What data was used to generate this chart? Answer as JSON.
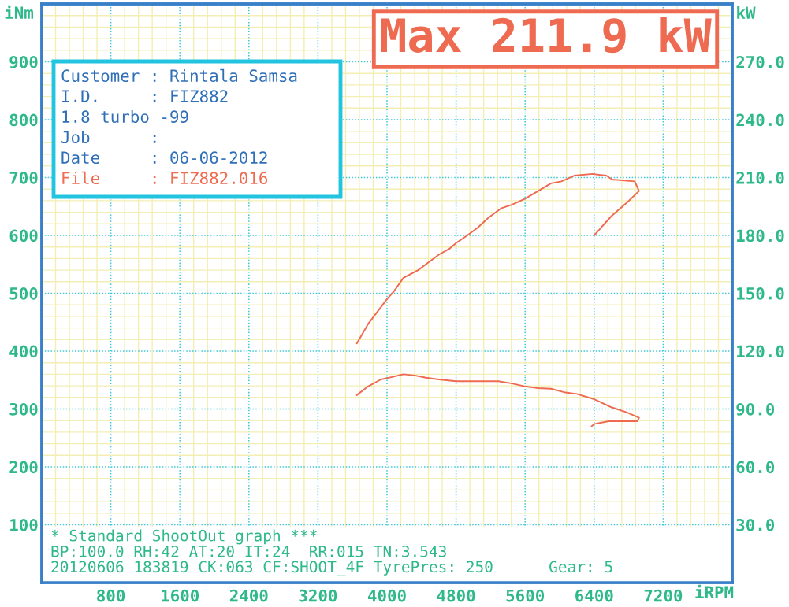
{
  "chart_data": {
    "type": "line",
    "title": "Max 211.9 kW",
    "xlabel": "iRPM",
    "ylabel": "iNm",
    "y2label": "kW",
    "xlim": [
      0,
      8000
    ],
    "xticks": [
      {
        "value": 160,
        "label": null
      },
      {
        "value": 320,
        "label": null
      },
      {
        "value": 480,
        "label": null
      },
      {
        "value": 640,
        "label": null
      },
      800,
      {
        "value": 960,
        "label": null
      },
      {
        "value": 1120,
        "label": null
      },
      {
        "value": 1280,
        "label": null
      },
      {
        "value": 1440,
        "label": null
      },
      1600,
      {
        "value": 1760,
        "label": null
      },
      {
        "value": 1920,
        "label": null
      },
      {
        "value": 2080,
        "label": null
      },
      {
        "value": 2240,
        "label": null
      },
      2400,
      {
        "value": 2560,
        "label": null
      },
      {
        "value": 2720,
        "label": null
      },
      {
        "value": 2880,
        "label": null
      },
      {
        "value": 3040,
        "label": null
      },
      3200,
      {
        "value": 3360,
        "label": null
      },
      {
        "value": 3520,
        "label": null
      },
      {
        "value": 3680,
        "label": null
      },
      {
        "value": 3840,
        "label": null
      },
      4000,
      {
        "value": 4160,
        "label": null
      },
      {
        "value": 4320,
        "label": null
      },
      {
        "value": 4480,
        "label": null
      },
      {
        "value": 4640,
        "label": null
      },
      4800,
      {
        "value": 4960,
        "label": null
      },
      {
        "value": 5120,
        "label": null
      },
      {
        "value": 5280,
        "label": null
      },
      {
        "value": 5440,
        "label": null
      },
      5600,
      {
        "value": 5760,
        "label": null
      },
      {
        "value": 5920,
        "label": null
      },
      {
        "value": 6080,
        "label": null
      },
      {
        "value": 6240,
        "label": null
      },
      6400,
      {
        "value": 6560,
        "label": null
      },
      {
        "value": 6720,
        "label": null
      },
      {
        "value": 6880,
        "label": null
      },
      {
        "value": 7040,
        "label": null
      },
      7200,
      {
        "value": 7360,
        "label": null
      },
      {
        "value": 7520,
        "label": null
      },
      {
        "value": 7680,
        "label": null
      },
      {
        "value": 7840,
        "label": null
      }
    ],
    "ylim": [
      0,
      1000
    ],
    "yticks": [
      100,
      {
        "value": 120,
        "label": null
      },
      {
        "value": 140,
        "label": null
      },
      {
        "value": 160,
        "label": null
      },
      {
        "value": 180,
        "label": null
      },
      200,
      {
        "value": 220,
        "label": null
      },
      {
        "value": 240,
        "label": null
      },
      {
        "value": 260,
        "label": null
      },
      {
        "value": 280,
        "label": null
      },
      300,
      {
        "value": 320,
        "label": null
      },
      {
        "value": 340,
        "label": null
      },
      {
        "value": 360,
        "label": null
      },
      {
        "value": 380,
        "label": null
      },
      400,
      {
        "value": 420,
        "label": null
      },
      {
        "value": 440,
        "label": null
      },
      {
        "value": 460,
        "label": null
      },
      {
        "value": 480,
        "label": null
      },
      500,
      {
        "value": 520,
        "label": null
      },
      {
        "value": 540,
        "label": null
      },
      {
        "value": 560,
        "label": null
      },
      {
        "value": 580,
        "label": null
      },
      600,
      {
        "value": 620,
        "label": null
      },
      {
        "value": 640,
        "label": null
      },
      {
        "value": 660,
        "label": null
      },
      {
        "value": 680,
        "label": null
      },
      700,
      {
        "value": 720,
        "label": null
      },
      {
        "value": 740,
        "label": null
      },
      {
        "value": 760,
        "label": null
      },
      {
        "value": 780,
        "label": null
      },
      800,
      {
        "value": 820,
        "label": null
      },
      {
        "value": 840,
        "label": null
      },
      {
        "value": 860,
        "label": null
      },
      {
        "value": 880,
        "label": null
      },
      900,
      {
        "value": 920,
        "label": null
      },
      {
        "value": 940,
        "label": null
      },
      {
        "value": 960,
        "label": null
      },
      {
        "value": 980,
        "label": null
      }
    ],
    "y2lim": [
      0,
      300
    ],
    "y2ticks": [
      {
        "value": 30,
        "label": "30.0"
      },
      {
        "value": 60,
        "label": "60.0"
      },
      {
        "value": 90,
        "label": "90.0"
      },
      {
        "value": 120,
        "label": "120.0"
      },
      {
        "value": 150,
        "label": "150.0"
      },
      {
        "value": 180,
        "label": "180.0"
      },
      {
        "value": 210,
        "label": "210.0"
      },
      {
        "value": 240,
        "label": "240.0"
      },
      {
        "value": 270,
        "label": "270.0"
      }
    ],
    "grid": true,
    "line_style": "solid",
    "series": [
      {
        "color": "#ee6a50",
        "x": [
          3650,
          3780,
          3930,
          4080,
          4190,
          4320,
          4450,
          4600,
          4800,
          5080,
          5290,
          5450,
          5600,
          5750,
          5900,
          6050,
          6200,
          6400,
          6600,
          6780,
          6920,
          6900,
          6570,
          6400,
          6370
        ],
        "values": [
          324,
          339,
          351,
          356,
          360,
          358,
          354,
          351,
          348,
          348,
          348,
          344,
          339,
          336,
          335,
          329,
          326,
          317,
          303,
          294,
          285,
          279,
          279,
          274,
          270
        ]
      },
      {
        "color": "#ee6a50",
        "axis": "y2",
        "x": [
          3650,
          3780,
          4000,
          4080,
          4190,
          4360,
          4480,
          4600,
          4720,
          4800,
          4930,
          5050,
          5170,
          5320,
          5450,
          5600,
          5750,
          5900,
          6020,
          6170,
          6380,
          6540,
          6610,
          6870,
          6920,
          6780,
          6600,
          6400
        ],
        "values": [
          124,
          134,
          147,
          151,
          158,
          162,
          166,
          170,
          173,
          176,
          180,
          184,
          189,
          194,
          196,
          199,
          203,
          207,
          208,
          211,
          211.9,
          211,
          209,
          208,
          203,
          197,
          190,
          180
        ]
      }
    ],
    "annotations": [
      "Customer : Rintala Samsa",
      "I.D.     : FIZ882",
      "1.8 turbo -99",
      "Job      :",
      "Date     : 06-06-2012",
      "File     : FIZ882.016",
      "* Standard ShootOut graph ***",
      "BP:100.0 RH:42 AT:20 IT:24  RR:015 TN:3.543",
      "20120606 183819 CK:063 CF:SHOOT_4F TyrePres: 250      Gear: 5"
    ]
  }
}
